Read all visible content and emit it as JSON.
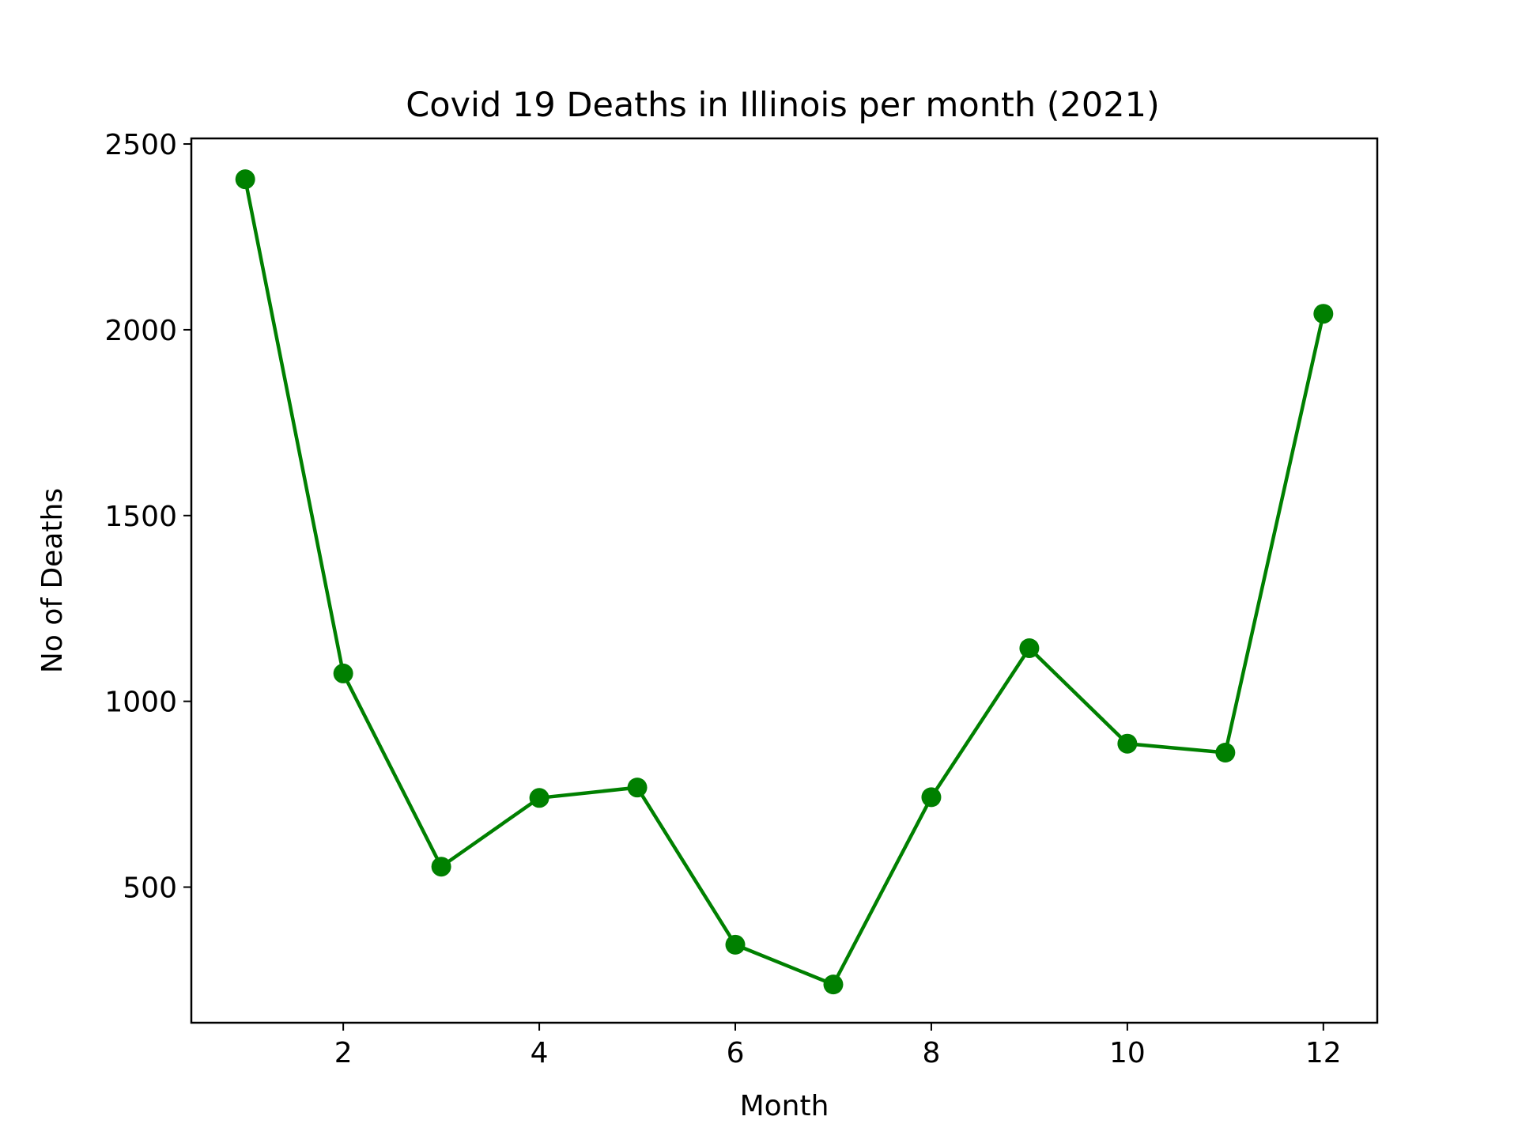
{
  "chart_data": {
    "type": "line",
    "title": "Covid 19 Deaths in Illinois per month (2021)",
    "xlabel": "Month",
    "ylabel": "No of Deaths",
    "x": [
      1,
      2,
      3,
      4,
      5,
      6,
      7,
      8,
      9,
      10,
      11,
      12
    ],
    "series": [
      {
        "values": [
          2405,
          1075,
          555,
          740,
          768,
          345,
          238,
          742,
          1143,
          886,
          862,
          2043
        ],
        "color": "#008000",
        "marker": "circle"
      }
    ],
    "xlim": [
      0.45,
      12.55
    ],
    "ylim": [
      135,
      2515
    ],
    "xticks": [
      2,
      4,
      6,
      8,
      10,
      12
    ],
    "yticks": [
      500,
      1000,
      1500,
      2000,
      2500
    ],
    "grid": false,
    "legend": "none"
  }
}
